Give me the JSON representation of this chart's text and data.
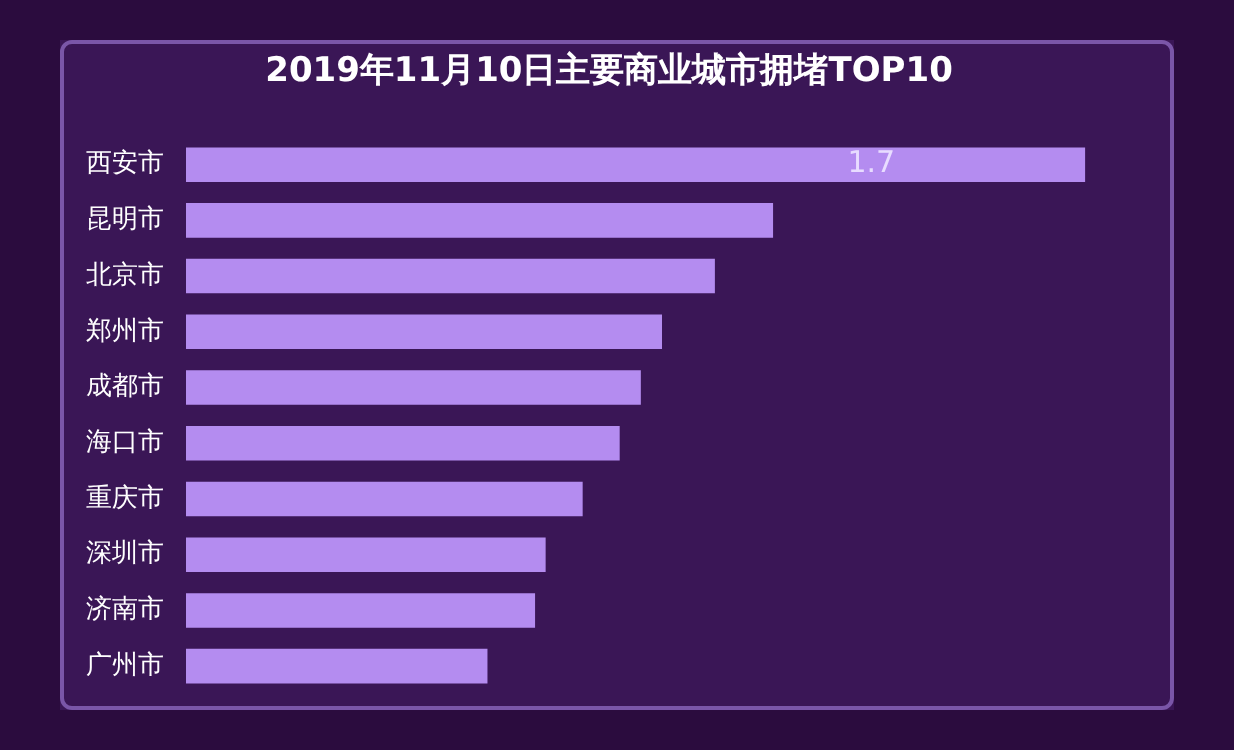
{
  "chart_data": {
    "type": "bar",
    "orientation": "horizontal",
    "tick_labels": "y",
    "title": "2019年11月10日主要商业城市拥堵TOP10",
    "categories": [
      "西安市",
      "昆明市",
      "北京市",
      "郑州市",
      "成都市",
      "海口市",
      "重庆市",
      "深圳市",
      "济南市",
      "广州市"
    ],
    "values": [
      1.7,
      1.11,
      1.0,
      0.9,
      0.86,
      0.82,
      0.75,
      0.68,
      0.66,
      0.57
    ],
    "value_labels": [
      "1.7",
      null,
      null,
      null,
      null,
      null,
      null,
      null,
      null,
      null
    ],
    "color": "#b48cf0",
    "grid": false,
    "legend": false
  }
}
